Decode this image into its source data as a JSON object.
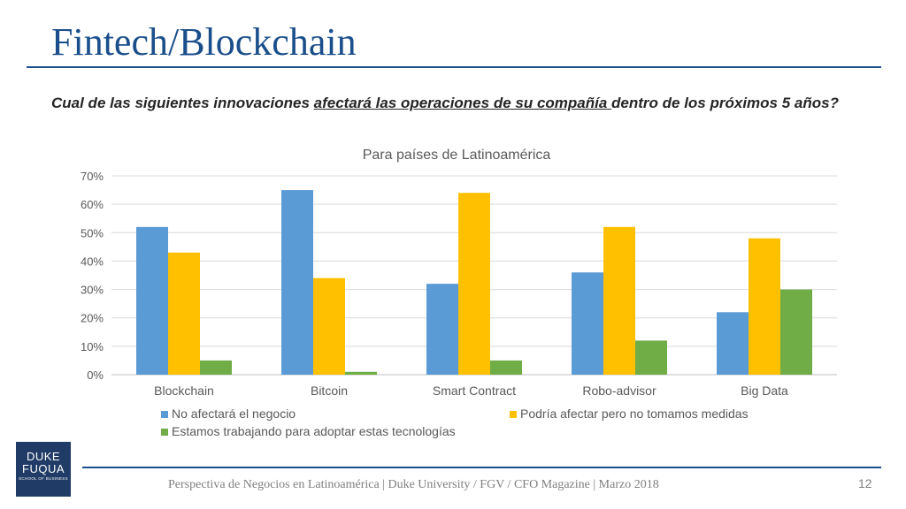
{
  "slide": {
    "title": "Fintech/Blockchain",
    "question_part1": "Cual de las siguientes innovaciones ",
    "question_underlined": "afectará las operaciones de su compañía ",
    "question_part2": "dentro de los próximos 5 años?",
    "footer": "Perspectiva de Negocios en Latinoamérica | Duke University / FGV / CFO Magazine | Marzo 2018",
    "page_number": "12",
    "logo": {
      "line1": "DUKE",
      "line2": "FUQUA",
      "line3": "SCHOOL OF BUSINESS"
    }
  },
  "colors": {
    "title": "#1a4f8b",
    "series1": "#5b9bd5",
    "series2": "#ffc000",
    "series3": "#70ad47"
  },
  "chart_data": {
    "type": "bar",
    "title": "Para países de Latinoamérica",
    "categories": [
      "Blockchain",
      "Bitcoin",
      "Smart Contract",
      "Robo-advisor",
      "Big Data"
    ],
    "series": [
      {
        "name": "No afectará el negocio",
        "values": [
          52,
          65,
          32,
          36,
          22
        ],
        "color": "#5b9bd5"
      },
      {
        "name": "Podría afectar pero no tomamos medidas",
        "values": [
          43,
          34,
          64,
          52,
          48
        ],
        "color": "#ffc000"
      },
      {
        "name": "Estamos trabajando para adoptar estas tecnologías",
        "values": [
          5,
          1,
          5,
          12,
          30
        ],
        "color": "#70ad47"
      }
    ],
    "yticks": [
      "0%",
      "10%",
      "20%",
      "30%",
      "40%",
      "50%",
      "60%",
      "70%"
    ],
    "ylim": [
      0,
      70
    ],
    "grid": true,
    "legend": "bottom"
  }
}
